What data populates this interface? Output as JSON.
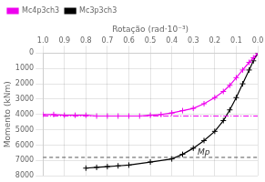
{
  "chart_data": {
    "type": "line",
    "xlabel": "Rotação (rad·10⁻³)",
    "ylabel": "Momento (kNm)",
    "xlim": [
      1.0,
      0.0
    ],
    "ylim": [
      8000,
      0
    ],
    "xticks": [
      {
        "value": 0.0,
        "label": "0.0"
      },
      0.1,
      0.2,
      0.3,
      0.4,
      0.5,
      0.6,
      0.7,
      0.8,
      0.9,
      {
        "value": 1.0,
        "label": "1.0"
      }
    ],
    "yticks": [
      0,
      1000,
      2000,
      3000,
      4000,
      5000,
      6000,
      7000,
      8000
    ],
    "grid": true,
    "legend": "upper left",
    "series": [
      {
        "name": "Mc4p3ch3",
        "color": "#ee00ee",
        "marker": "+",
        "x": [
          0.0,
          0.02,
          0.04,
          0.07,
          0.1,
          0.13,
          0.16,
          0.2,
          0.25,
          0.3,
          0.35,
          0.4,
          0.45,
          0.5,
          0.55,
          0.6,
          0.65,
          0.7,
          0.75,
          0.8,
          0.85,
          0.9,
          0.95,
          1.0
        ],
        "values": [
          0,
          300,
          600,
          1100,
          1600,
          2100,
          2500,
          2900,
          3300,
          3600,
          3750,
          3900,
          4000,
          4050,
          4100,
          4100,
          4100,
          4100,
          4100,
          4050,
          4050,
          4050,
          4000,
          4000
        ]
      },
      {
        "name": "Mc3p3ch3",
        "color": "#000000",
        "marker": "+",
        "x": [
          0.0,
          0.02,
          0.04,
          0.07,
          0.1,
          0.13,
          0.16,
          0.2,
          0.25,
          0.3,
          0.35,
          0.4,
          0.5,
          0.6,
          0.65,
          0.7,
          0.75,
          0.8
        ],
        "values": [
          0,
          500,
          1100,
          2000,
          2900,
          3700,
          4400,
          5100,
          5700,
          6200,
          6600,
          6900,
          7100,
          7300,
          7350,
          7400,
          7450,
          7500
        ]
      }
    ],
    "hlines": [
      {
        "y": 4100,
        "color": "#ee00ee",
        "line_style": "dashdot"
      },
      {
        "y": 6800,
        "color": "#555555",
        "line_style": "dashed"
      }
    ],
    "annotations": [
      {
        "text": "Mp",
        "x": 0.28,
        "y": 6650
      }
    ]
  }
}
